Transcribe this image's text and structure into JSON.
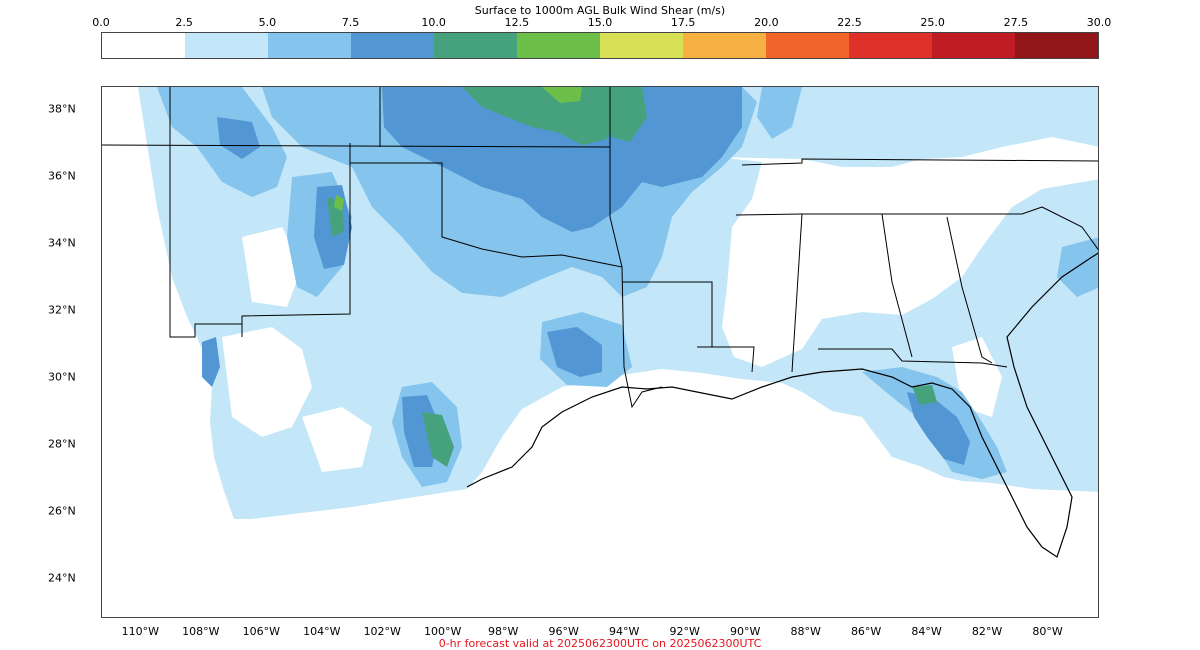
{
  "colorbar": {
    "title": "Surface to 1000m AGL Bulk Wind Shear (m/s)",
    "ticks": [
      "0.0",
      "2.5",
      "5.0",
      "7.5",
      "10.0",
      "12.5",
      "15.0",
      "17.5",
      "20.0",
      "22.5",
      "25.0",
      "27.5",
      "30.0"
    ],
    "colors": [
      "#ffffff",
      "#c3e7f8",
      "#85c4ec",
      "#5296d3",
      "#46a27d",
      "#6cc04a",
      "#d8e055",
      "#f7b143",
      "#f2652a",
      "#df3129",
      "#bf1c24",
      "#921519"
    ]
  },
  "map": {
    "extent": {
      "lon_min": -111.3,
      "lon_max": -78.3,
      "lat_min": 22.8,
      "lat_max": 38.7
    },
    "lat_labels": [
      {
        "lat": 38,
        "text": "38°N"
      },
      {
        "lat": 36,
        "text": "36°N"
      },
      {
        "lat": 34,
        "text": "34°N"
      },
      {
        "lat": 32,
        "text": "32°N"
      },
      {
        "lat": 30,
        "text": "30°N"
      },
      {
        "lat": 28,
        "text": "28°N"
      },
      {
        "lat": 26,
        "text": "26°N"
      },
      {
        "lat": 24,
        "text": "24°N"
      }
    ],
    "lon_labels": [
      {
        "lon": -110,
        "text": "110°W"
      },
      {
        "lon": -108,
        "text": "108°W"
      },
      {
        "lon": -106,
        "text": "106°W"
      },
      {
        "lon": -104,
        "text": "104°W"
      },
      {
        "lon": -102,
        "text": "102°W"
      },
      {
        "lon": -100,
        "text": "100°W"
      },
      {
        "lon": -98,
        "text": "98°W"
      },
      {
        "lon": -96,
        "text": "96°W"
      },
      {
        "lon": -94,
        "text": "94°W"
      },
      {
        "lon": -92,
        "text": "92°W"
      },
      {
        "lon": -90,
        "text": "90°W"
      },
      {
        "lon": -88,
        "text": "88°W"
      },
      {
        "lon": -86,
        "text": "86°W"
      },
      {
        "lon": -84,
        "text": "84°W"
      },
      {
        "lon": -82,
        "text": "82°W"
      },
      {
        "lon": -80,
        "text": "80°W"
      }
    ]
  },
  "valid_text": "0-hr forecast valid at 2025062300UTC on 2025062300UTC"
}
